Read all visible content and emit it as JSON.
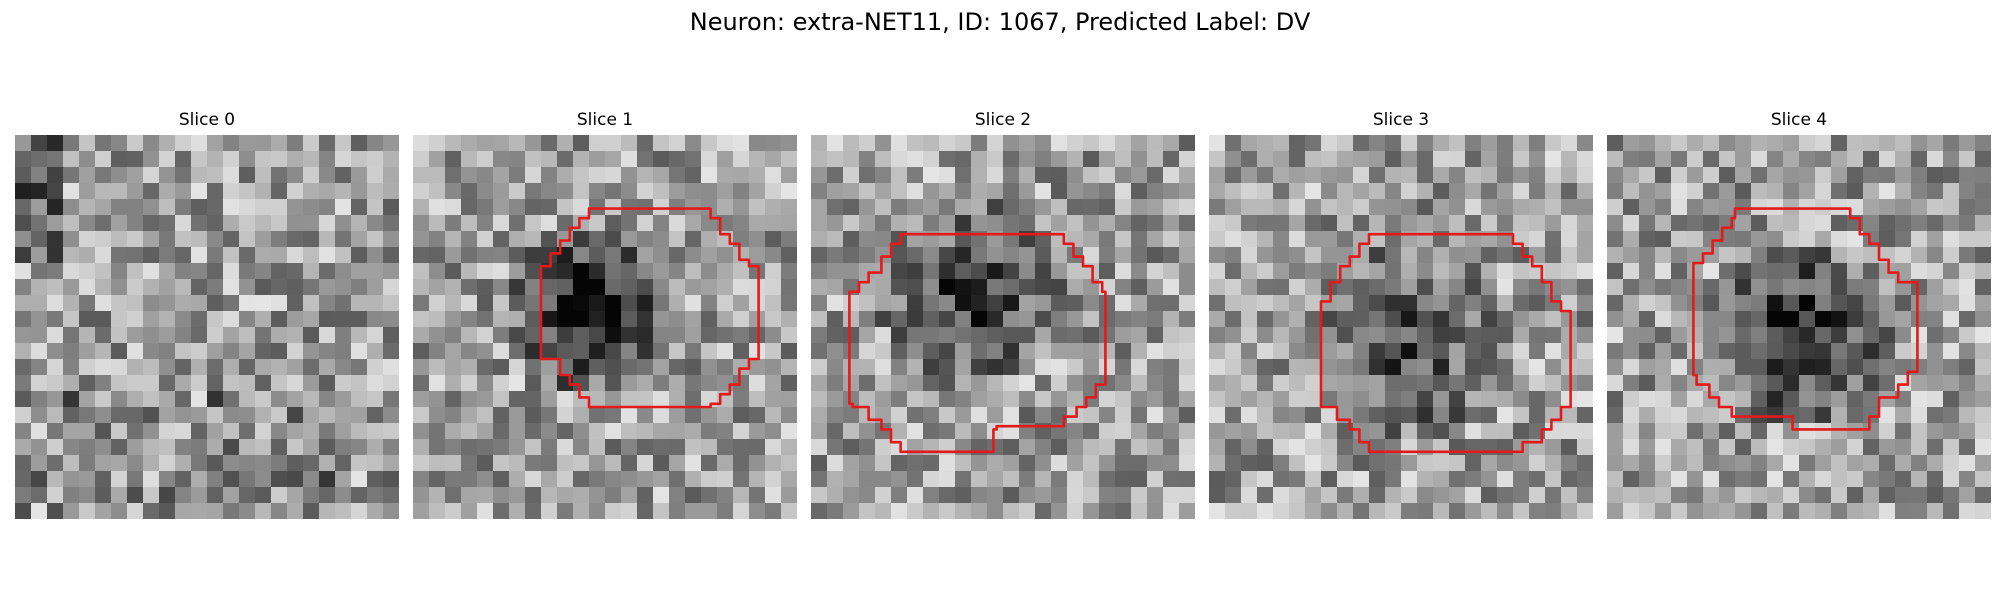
{
  "figure": {
    "suptitle": "Neuron: extra-NET11, ID: 1067, Predicted Label: DV"
  },
  "contour_color": "#e31a1c",
  "colormap": "gray",
  "panels": [
    {
      "title": "Slice 0",
      "has_contour": false,
      "seed": 11,
      "blob_strength": 0.0
    },
    {
      "title": "Slice 1",
      "has_contour": true,
      "seed": 23,
      "blob_strength": 0.55
    },
    {
      "title": "Slice 2",
      "has_contour": true,
      "seed": 37,
      "blob_strength": 0.35
    },
    {
      "title": "Slice 3",
      "has_contour": true,
      "seed": 41,
      "blob_strength": 0.25
    },
    {
      "title": "Slice 4",
      "has_contour": true,
      "seed": 59,
      "blob_strength": 0.45
    }
  ]
}
